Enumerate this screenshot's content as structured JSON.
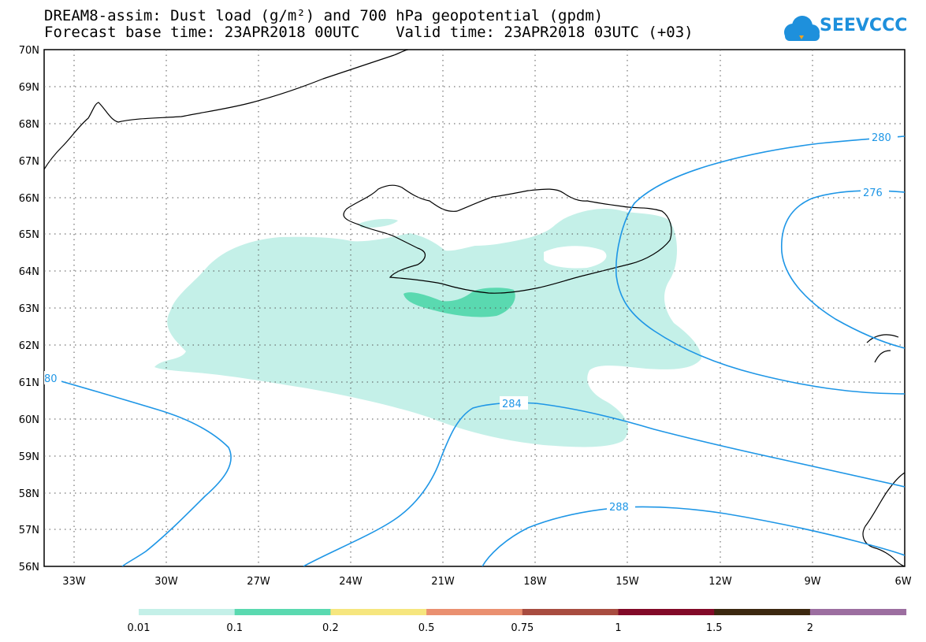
{
  "title_line1": "DREAM8-assim: Dust load (g/m²) and 700 hPa geopotential (gpdm)",
  "title_line2": "Forecast base time: 23APR2018 00UTC    Valid time: 23APR2018 03UTC (+03)",
  "logo_text": "SEEVCCC",
  "logo_icon": "cloud-icon",
  "map": {
    "lat_labels": [
      "70N",
      "69N",
      "68N",
      "67N",
      "66N",
      "65N",
      "64N",
      "63N",
      "62N",
      "61N",
      "60N",
      "59N",
      "58N",
      "57N",
      "56N"
    ],
    "lon_labels": [
      "33W",
      "30W",
      "27W",
      "24W",
      "21W",
      "18W",
      "15W",
      "12W",
      "9W",
      "6W"
    ],
    "contour_color": "#1e96e6",
    "contour_labels": [
      "280",
      "276",
      "284",
      "288",
      "80"
    ]
  },
  "legend": {
    "colors": [
      "#c4f0e8",
      "#5ad9b0",
      "#f6e67e",
      "#ea9070",
      "#a84c40",
      "#820a28",
      "#3c2810",
      "#9c6ea0"
    ],
    "labels": [
      "0.01",
      "0.1",
      "0.2",
      "0.5",
      "0.75",
      "1",
      "1.5",
      "2"
    ]
  }
}
